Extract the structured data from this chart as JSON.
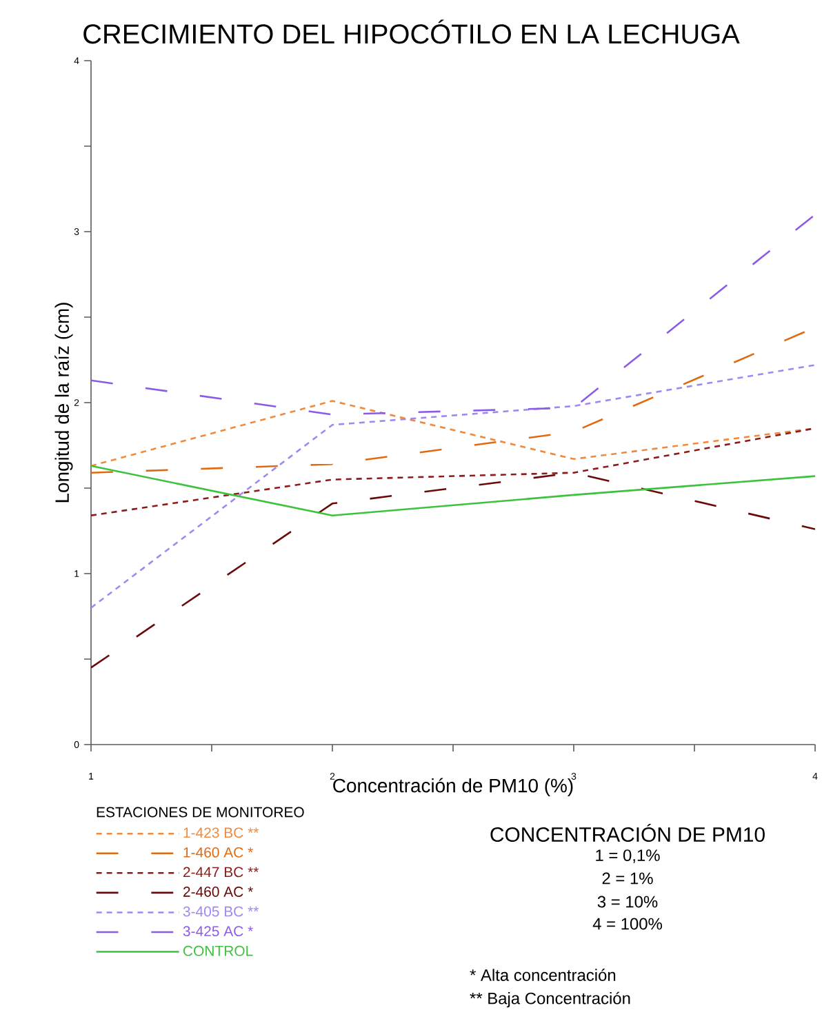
{
  "chart_data": {
    "type": "line",
    "title": "CRECIMIENTO DEL HIPOCÓTILO EN LA LECHUGA",
    "xlabel": "Concentración de PM10 (%)",
    "ylabel": "Longitud de la raíz (cm)",
    "legend_title": "ESTACIONES DE MONITOREO",
    "legend": "bottom left",
    "grid": false,
    "marker": "none",
    "x": [
      1,
      2,
      3,
      4
    ],
    "xlim": [
      1,
      4
    ],
    "ylim": [
      0,
      4
    ],
    "xticks": [
      1,
      {
        "value": 1.5,
        "label": null
      },
      2,
      {
        "value": 2.5,
        "label": null
      },
      3,
      {
        "value": 3.5,
        "label": null
      },
      4
    ],
    "yticks": [
      0,
      {
        "value": 0.5,
        "label": null
      },
      1,
      {
        "value": 1.5,
        "label": null
      },
      2,
      {
        "value": 2.5,
        "label": null
      },
      3,
      {
        "value": 3.5,
        "label": null
      },
      4
    ],
    "series": [
      {
        "name": "1-423 BC **",
        "color": "#f08a3c",
        "line_style": "dotted",
        "values": [
          1.63,
          2.01,
          1.67,
          1.85
        ]
      },
      {
        "name": "1-460 AC *",
        "color": "#e06a12",
        "line_style": "dashed",
        "values": [
          1.59,
          1.64,
          1.83,
          2.44
        ]
      },
      {
        "name": "2-447 BC **",
        "color": "#8c1c1c",
        "line_style": "dotted",
        "values": [
          1.34,
          1.55,
          1.59,
          1.85
        ]
      },
      {
        "name": "2-460 AC *",
        "color": "#6a0a0a",
        "line_style": "dashed",
        "values": [
          0.45,
          1.41,
          1.59,
          1.26
        ]
      },
      {
        "name": "3-405 BC **",
        "color": "#a287f2",
        "line_style": "dotted",
        "values": [
          0.8,
          1.87,
          1.98,
          2.22
        ]
      },
      {
        "name": "3-425 AC *",
        "color": "#8a5ce6",
        "line_style": "dashed",
        "values": [
          2.13,
          1.93,
          1.97,
          3.1
        ]
      },
      {
        "name": "CONTROL",
        "color": "#3cc23c",
        "line_style": "solid",
        "values": [
          1.63,
          1.34,
          1.46,
          1.57
        ]
      }
    ],
    "annotations": [
      "CONCENTRACIÓN DE PM10",
      "1 = 0,1%",
      "2 = 1%",
      "3 = 10%",
      "4 = 100%",
      "*  Alta concentración",
      "** Baja Concentración"
    ]
  }
}
